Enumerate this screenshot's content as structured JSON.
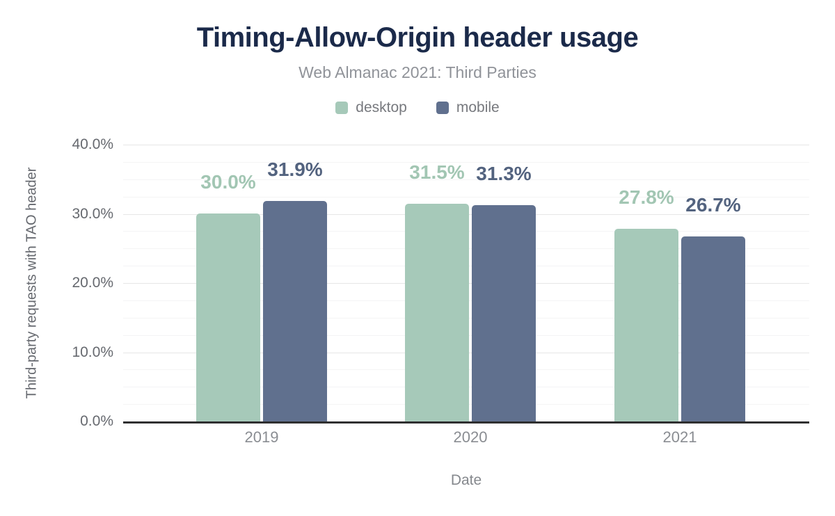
{
  "title": "Timing-Allow-Origin header usage",
  "subtitle": "Web Almanac 2021: Third Parties",
  "legend": {
    "items": [
      {
        "label": "desktop"
      },
      {
        "label": "mobile"
      }
    ]
  },
  "colors": {
    "title": "#1b2a4a",
    "desktop_bar": "#a6c9b9",
    "mobile_bar": "#60708e",
    "desktop_label": "#a2c6b3",
    "mobile_label": "#53637f",
    "baseline": "#2f2f30"
  },
  "chart_data": {
    "type": "bar",
    "title": "Timing-Allow-Origin header usage",
    "subtitle": "Web Almanac 2021: Third Parties",
    "categories": [
      "2019",
      "2020",
      "2021"
    ],
    "series": [
      {
        "name": "desktop",
        "color": "#a6c9b9",
        "label_color": "#a2c6b3",
        "values": [
          30.0,
          31.5,
          27.8
        ],
        "labels": [
          "30.0%",
          "31.5%",
          "27.8%"
        ]
      },
      {
        "name": "mobile",
        "color": "#60708e",
        "label_color": "#53637f",
        "values": [
          31.9,
          31.3,
          26.7
        ],
        "labels": [
          "31.9%",
          "31.3%",
          "26.7%"
        ]
      }
    ],
    "xlabel": "Date",
    "ylabel": "Third-party requests with TAO header",
    "ylim": [
      0,
      40
    ],
    "yticks": [
      {
        "value": 0,
        "label": "0.0%"
      },
      {
        "value": 10,
        "label": "10.0%"
      },
      {
        "value": 20,
        "label": "20.0%"
      },
      {
        "value": 30,
        "label": "30.0%"
      },
      {
        "value": 40,
        "label": "40.0%"
      }
    ],
    "grid": {
      "major_step": 10,
      "minor_step": 2.5,
      "grid_on": true
    },
    "legend_position": "top",
    "bar_orientation": "vertical"
  }
}
